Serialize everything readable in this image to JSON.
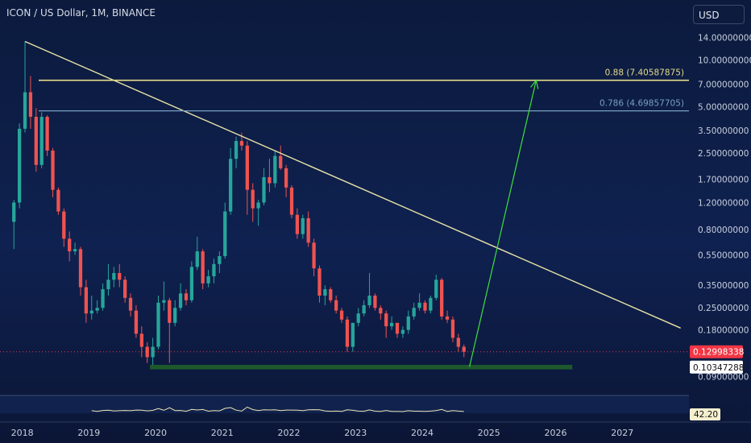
{
  "header": {
    "title": "ICON / US Dollar, 1M, BINANCE",
    "currency": "USD"
  },
  "chart_data": {
    "type": "candlestick",
    "title": "ICON / US Dollar, 1M, BINANCE",
    "y_scale": "log",
    "ylim": [
      0.072,
      17.5
    ],
    "xlim": [
      "2017-09",
      "2027-12"
    ],
    "y_ticks": [
      {
        "value": 14.0,
        "label": "14.00000000"
      },
      {
        "value": 10.0,
        "label": "10.00000000"
      },
      {
        "value": 7.0,
        "label": "7.00000000"
      },
      {
        "value": 5.0,
        "label": "5.00000000"
      },
      {
        "value": 3.5,
        "label": "3.50000000"
      },
      {
        "value": 2.5,
        "label": "2.50000000"
      },
      {
        "value": 1.7,
        "label": "1.70000000"
      },
      {
        "value": 1.2,
        "label": "1.20000000"
      },
      {
        "value": 0.8,
        "label": "0.80000000"
      },
      {
        "value": 0.55,
        "label": "0.55000000"
      },
      {
        "value": 0.35,
        "label": "0.35000000"
      },
      {
        "value": 0.25,
        "label": "0.25000000"
      },
      {
        "value": 0.18,
        "label": "0.18000000"
      },
      {
        "value": 0.09,
        "label": "0.09000000"
      }
    ],
    "x_ticks": [
      "2018",
      "2019",
      "2020",
      "2021",
      "2022",
      "2023",
      "2024",
      "2025",
      "2026",
      "2027"
    ],
    "candles": [
      [
        "2017-11",
        0.9,
        1.25,
        0.6,
        1.2
      ],
      [
        "2017-12",
        1.2,
        3.9,
        1.1,
        3.6
      ],
      [
        "2018-01",
        3.6,
        13.2,
        3.4,
        6.2
      ],
      [
        "2018-02",
        6.2,
        7.9,
        3.6,
        4.3
      ],
      [
        "2018-03",
        4.3,
        4.9,
        1.9,
        2.1
      ],
      [
        "2018-04",
        2.1,
        4.6,
        2.0,
        4.3
      ],
      [
        "2018-05",
        4.3,
        4.4,
        2.4,
        2.6
      ],
      [
        "2018-06",
        2.6,
        2.7,
        1.3,
        1.45
      ],
      [
        "2018-07",
        1.45,
        1.5,
        1.0,
        1.05
      ],
      [
        "2018-08",
        1.05,
        1.1,
        0.62,
        0.7
      ],
      [
        "2018-09",
        0.7,
        0.78,
        0.5,
        0.58
      ],
      [
        "2018-10",
        0.58,
        0.66,
        0.55,
        0.6
      ],
      [
        "2018-11",
        0.6,
        0.62,
        0.3,
        0.34
      ],
      [
        "2018-12",
        0.34,
        0.38,
        0.2,
        0.23
      ],
      [
        "2019-01",
        0.23,
        0.3,
        0.21,
        0.24
      ],
      [
        "2019-02",
        0.24,
        0.28,
        0.23,
        0.25
      ],
      [
        "2019-03",
        0.25,
        0.36,
        0.24,
        0.33
      ],
      [
        "2019-04",
        0.33,
        0.48,
        0.3,
        0.38
      ],
      [
        "2019-05",
        0.38,
        0.46,
        0.34,
        0.42
      ],
      [
        "2019-06",
        0.42,
        0.48,
        0.34,
        0.38
      ],
      [
        "2019-07",
        0.38,
        0.4,
        0.27,
        0.29
      ],
      [
        "2019-08",
        0.29,
        0.31,
        0.22,
        0.24
      ],
      [
        "2019-09",
        0.24,
        0.26,
        0.16,
        0.17
      ],
      [
        "2019-10",
        0.17,
        0.19,
        0.12,
        0.14
      ],
      [
        "2019-11",
        0.14,
        0.15,
        0.11,
        0.12
      ],
      [
        "2019-12",
        0.12,
        0.16,
        0.105,
        0.14
      ],
      [
        "2020-01",
        0.14,
        0.3,
        0.135,
        0.27
      ],
      [
        "2020-02",
        0.27,
        0.37,
        0.24,
        0.28
      ],
      [
        "2020-03",
        0.28,
        0.29,
        0.11,
        0.2
      ],
      [
        "2020-04",
        0.2,
        0.28,
        0.19,
        0.25
      ],
      [
        "2020-05",
        0.25,
        0.36,
        0.24,
        0.31
      ],
      [
        "2020-06",
        0.31,
        0.33,
        0.26,
        0.28
      ],
      [
        "2020-07",
        0.28,
        0.5,
        0.27,
        0.46
      ],
      [
        "2020-08",
        0.46,
        0.72,
        0.44,
        0.58
      ],
      [
        "2020-09",
        0.58,
        0.6,
        0.33,
        0.36
      ],
      [
        "2020-10",
        0.36,
        0.44,
        0.34,
        0.4
      ],
      [
        "2020-11",
        0.4,
        0.52,
        0.36,
        0.48
      ],
      [
        "2020-12",
        0.48,
        0.58,
        0.42,
        0.54
      ],
      [
        "2021-01",
        0.54,
        1.2,
        0.52,
        1.05
      ],
      [
        "2021-02",
        1.05,
        2.7,
        1.0,
        2.3
      ],
      [
        "2021-03",
        2.3,
        3.2,
        2.0,
        3.0
      ],
      [
        "2021-04",
        3.0,
        3.4,
        2.6,
        2.8
      ],
      [
        "2021-05",
        2.8,
        3.0,
        1.0,
        1.45
      ],
      [
        "2021-06",
        1.45,
        1.6,
        0.9,
        1.1
      ],
      [
        "2021-07",
        1.1,
        1.25,
        0.85,
        1.2
      ],
      [
        "2021-08",
        1.2,
        2.0,
        1.15,
        1.75
      ],
      [
        "2021-09",
        1.75,
        2.3,
        1.4,
        1.6
      ],
      [
        "2021-10",
        1.6,
        2.6,
        1.5,
        2.4
      ],
      [
        "2021-11",
        2.4,
        2.8,
        1.95,
        2.0
      ],
      [
        "2021-12",
        2.0,
        2.1,
        1.3,
        1.5
      ],
      [
        "2022-01",
        1.5,
        1.55,
        0.95,
        1.0
      ],
      [
        "2022-02",
        1.0,
        1.1,
        0.7,
        0.75
      ],
      [
        "2022-03",
        0.75,
        1.0,
        0.7,
        0.95
      ],
      [
        "2022-04",
        0.95,
        1.05,
        0.62,
        0.66
      ],
      [
        "2022-05",
        0.66,
        0.7,
        0.4,
        0.45
      ],
      [
        "2022-06",
        0.45,
        0.47,
        0.27,
        0.3
      ],
      [
        "2022-07",
        0.3,
        0.35,
        0.26,
        0.33
      ],
      [
        "2022-08",
        0.33,
        0.34,
        0.27,
        0.28
      ],
      [
        "2022-09",
        0.28,
        0.3,
        0.23,
        0.24
      ],
      [
        "2022-10",
        0.24,
        0.25,
        0.2,
        0.21
      ],
      [
        "2022-11",
        0.21,
        0.22,
        0.13,
        0.14
      ],
      [
        "2022-12",
        0.14,
        0.2,
        0.13,
        0.2
      ],
      [
        "2023-01",
        0.2,
        0.25,
        0.19,
        0.23
      ],
      [
        "2023-02",
        0.23,
        0.28,
        0.22,
        0.26
      ],
      [
        "2023-03",
        0.26,
        0.42,
        0.25,
        0.3
      ],
      [
        "2023-04",
        0.3,
        0.31,
        0.24,
        0.25
      ],
      [
        "2023-05",
        0.25,
        0.26,
        0.21,
        0.23
      ],
      [
        "2023-06",
        0.23,
        0.24,
        0.16,
        0.19
      ],
      [
        "2023-07",
        0.19,
        0.22,
        0.18,
        0.2
      ],
      [
        "2023-08",
        0.2,
        0.2,
        0.16,
        0.17
      ],
      [
        "2023-09",
        0.17,
        0.19,
        0.16,
        0.18
      ],
      [
        "2023-10",
        0.18,
        0.24,
        0.17,
        0.22
      ],
      [
        "2023-11",
        0.22,
        0.27,
        0.21,
        0.25
      ],
      [
        "2023-12",
        0.25,
        0.31,
        0.24,
        0.27
      ],
      [
        "2024-01",
        0.27,
        0.28,
        0.23,
        0.24
      ],
      [
        "2024-02",
        0.24,
        0.3,
        0.23,
        0.29
      ],
      [
        "2024-03",
        0.29,
        0.41,
        0.28,
        0.38
      ],
      [
        "2024-04",
        0.38,
        0.39,
        0.21,
        0.22
      ],
      [
        "2024-05",
        0.22,
        0.24,
        0.2,
        0.21
      ],
      [
        "2024-06",
        0.21,
        0.22,
        0.15,
        0.16
      ],
      [
        "2024-07",
        0.16,
        0.17,
        0.13,
        0.14
      ],
      [
        "2024-08",
        0.14,
        0.145,
        0.12,
        0.13
      ]
    ],
    "annotations": {
      "trendline": {
        "from": [
          "2018-01",
          13.2
        ],
        "to": [
          "2027-11",
          0.185
        ]
      },
      "arrow": {
        "from": [
          "2024-09",
          0.104
        ],
        "to": [
          "2025-09",
          7.4
        ]
      },
      "support_zone": {
        "from": "2019-12",
        "to": "2026-03",
        "low": 0.1,
        "high": 0.107
      },
      "fib_levels": [
        {
          "label": "0.88 (7.40587875)",
          "value": 7.40587875,
          "color": "#e6dc8c"
        },
        {
          "label": "0.786 (4.69857705)",
          "value": 4.69857705,
          "color": "#7a9fc2"
        }
      ],
      "last_price_line": 0.12998338
    },
    "price_labels": [
      {
        "text": "0.12998338",
        "value": 0.12998338,
        "color": "#f23645"
      },
      {
        "text": "0.10347288",
        "value": 0.10347288,
        "color": "#ffffff"
      }
    ],
    "indicator": {
      "last_value": "42.20"
    }
  }
}
